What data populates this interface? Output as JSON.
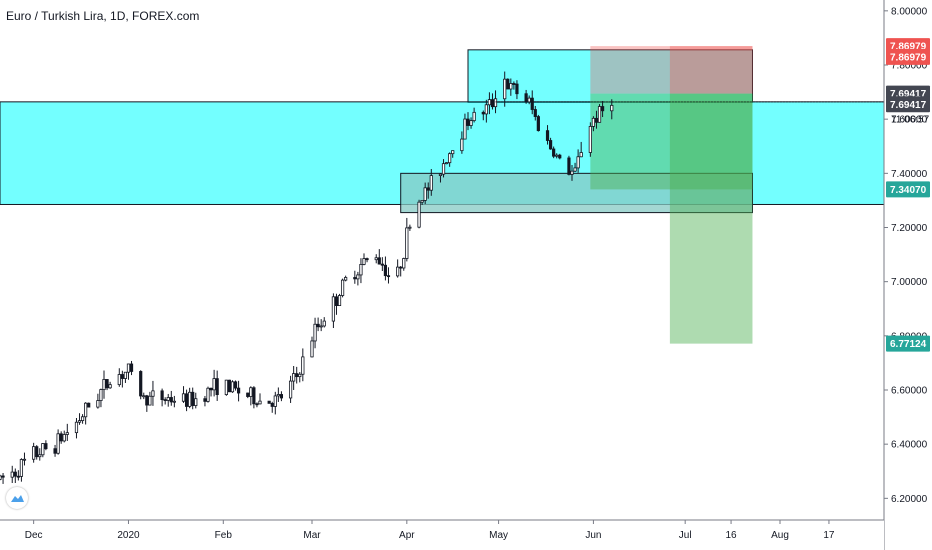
{
  "header": {
    "title": "Euro / Turkish Lira, 1D, FOREX.com"
  },
  "chart_data": {
    "type": "candlestick",
    "title": "Euro / Turkish Lira, 1D, FOREX.com",
    "ylim": [
      6.12,
      8.04
    ],
    "y_ticks": [
      {
        "value": 8.0,
        "label": "8.00000"
      },
      {
        "value": 7.8,
        "label": "7.80000"
      },
      {
        "value": 7.6,
        "label": "7.60000"
      },
      {
        "value": 7.4,
        "label": "7.40000"
      },
      {
        "value": 7.2,
        "label": "7.20000"
      },
      {
        "value": 7.0,
        "label": "7.00000"
      },
      {
        "value": 6.8,
        "label": "6.80000"
      },
      {
        "value": 6.6,
        "label": "6.60000"
      },
      {
        "value": 6.4,
        "label": "6.40000"
      },
      {
        "value": 6.2,
        "label": "6.20000"
      }
    ],
    "x_ticks": [
      {
        "label": "Dec",
        "day": 0
      },
      {
        "label": "2020",
        "day": 31
      },
      {
        "label": "Feb",
        "day": 62
      },
      {
        "label": "Mar",
        "day": 91
      },
      {
        "label": "Apr",
        "day": 122
      },
      {
        "label": "May",
        "day": 152
      },
      {
        "label": "Jun",
        "day": 183
      },
      {
        "label": "Jul",
        "day": 213
      },
      {
        "label": "16",
        "day": 228
      },
      {
        "label": "Aug",
        "day": 244
      },
      {
        "label": "17",
        "day": 260
      }
    ],
    "x_range_days": [
      -11,
      278
    ],
    "price_tags": [
      {
        "label": "7.86979",
        "value": 7.86979,
        "color": "#ef5350"
      },
      {
        "label": "7.86979",
        "value": 7.83,
        "color": "#ef5350"
      },
      {
        "label": "7.69417",
        "value": 7.69417,
        "color": "#434651"
      },
      {
        "label": "7.69417",
        "value": 7.655,
        "color": "#434651"
      },
      {
        "label": "7.34070",
        "value": 7.3407,
        "color": "#26a69a"
      },
      {
        "label": "6.77124",
        "value": 6.77124,
        "color": "#26a69a"
      }
    ],
    "current_price": {
      "label": "7.66393",
      "value": 7.66393
    },
    "countdown": {
      "label": "11:06:57",
      "value": 7.6
    },
    "zones": [
      {
        "name": "supply-zone",
        "y1": 7.856,
        "y2": 7.662,
        "d1": 142,
        "d2": 235,
        "color": "#00ffff"
      },
      {
        "name": "daily-zone",
        "y1": 7.66393,
        "y2": 7.285,
        "d1": -11,
        "d2": 278,
        "color": "#00ffff"
      },
      {
        "name": "inner-zone",
        "y1": 7.4,
        "y2": 7.255,
        "d1": 120,
        "d2": 235,
        "color": "#86c9c4"
      }
    ],
    "positions": [
      {
        "name": "short-position-1",
        "entry": 7.69417,
        "stop": 7.86979,
        "target": 7.3407,
        "d1": 182,
        "d2": 235
      },
      {
        "name": "short-position-2",
        "entry": 7.69417,
        "stop": 7.86979,
        "target": 6.77124,
        "d1": 208,
        "d2": 235
      }
    ],
    "colors": {
      "up": "#26a69a",
      "down": "#131722",
      "candle": "#131722",
      "stop": "#ef5350",
      "target": "#4caf50"
    },
    "ohlc_anchors": [
      [
        -11,
        6.27
      ],
      [
        -6,
        6.3
      ],
      [
        0,
        6.36
      ],
      [
        7,
        6.4
      ],
      [
        14,
        6.48
      ],
      [
        20,
        6.57
      ],
      [
        26,
        6.65
      ],
      [
        31,
        6.67
      ],
      [
        36,
        6.57
      ],
      [
        42,
        6.57
      ],
      [
        52,
        6.56
      ],
      [
        60,
        6.62
      ],
      [
        66,
        6.6
      ],
      [
        74,
        6.56
      ],
      [
        80,
        6.56
      ],
      [
        86,
        6.65
      ],
      [
        92,
        6.82
      ],
      [
        98,
        6.92
      ],
      [
        103,
        7.02
      ],
      [
        108,
        7.07
      ],
      [
        112,
        7.1
      ],
      [
        115,
        7.05
      ],
      [
        118,
        6.98
      ],
      [
        121,
        7.12
      ],
      [
        124,
        7.27
      ],
      [
        130,
        7.36
      ],
      [
        136,
        7.48
      ],
      [
        142,
        7.6
      ],
      [
        146,
        7.62
      ],
      [
        150,
        7.66
      ],
      [
        153,
        7.78
      ],
      [
        155,
        7.72
      ],
      [
        158,
        7.7
      ],
      [
        162,
        7.66
      ],
      [
        166,
        7.55
      ],
      [
        170,
        7.48
      ],
      [
        174,
        7.41
      ],
      [
        177,
        7.4
      ],
      [
        180,
        7.54
      ],
      [
        183,
        7.6
      ],
      [
        186,
        7.63
      ],
      [
        189,
        7.68
      ]
    ]
  }
}
